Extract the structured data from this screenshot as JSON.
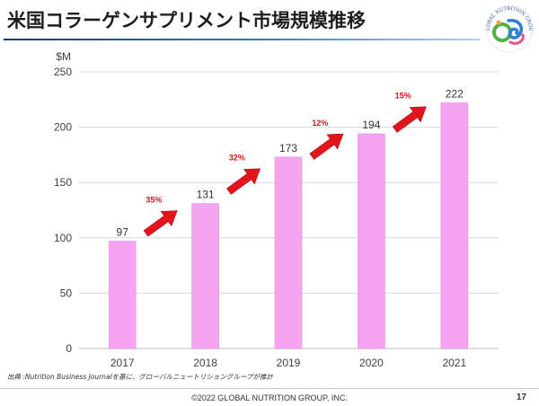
{
  "slide": {
    "source_note": "出典 :Nutrition Business Journalを基に、グローバルニュートリショングループが推計",
    "copyright": "©2022 GLOBAL NUTRITION GROUP, INC.",
    "page_number": "17"
  },
  "logo": {
    "text": "GLOBAL NUTRITION GROUP",
    "icon": "global-nutrition-group-logo"
  },
  "colors": {
    "title_rule": "#1F4E9A",
    "bar": "#F6A4F1",
    "bar_edge": "#E98BE4",
    "arrow": "#E3141C",
    "growth_text": "#D0191F",
    "grid": "#D9D9D9"
  },
  "chart_data": {
    "type": "bar",
    "title": "米国コラーゲンサプリメント市場規模推移",
    "ylabel": "$M",
    "xlabel": "",
    "categories": [
      "2017",
      "2018",
      "2019",
      "2020",
      "2021"
    ],
    "values": [
      97,
      131,
      173,
      194,
      222
    ],
    "growth_labels": [
      "35%",
      "32%",
      "12%",
      "15%"
    ],
    "ylim": [
      0,
      250
    ],
    "yticks": [
      0,
      50,
      100,
      150,
      200,
      250
    ],
    "grid": true
  }
}
